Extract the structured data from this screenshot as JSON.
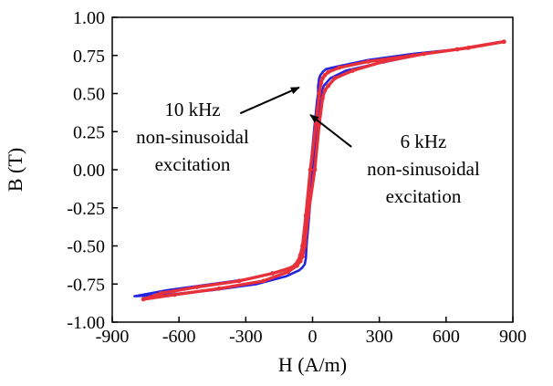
{
  "chart_data": {
    "type": "line",
    "title": "",
    "xlabel": "H (A/m)",
    "ylabel": "B (T)",
    "xlim": [
      -900,
      900
    ],
    "ylim": [
      -1.0,
      1.0
    ],
    "x_ticks": [
      -900,
      -600,
      -300,
      0,
      300,
      600,
      900
    ],
    "x_tick_labels": [
      "-900",
      "-600",
      "-300",
      "0",
      "300",
      "600",
      "900"
    ],
    "y_ticks": [
      -1.0,
      -0.75,
      -0.5,
      -0.25,
      0.0,
      0.25,
      0.5,
      0.75,
      1.0
    ],
    "y_tick_labels": [
      "-1.00",
      "-0.75",
      "-0.50",
      "-0.25",
      "0.00",
      "0.25",
      "0.50",
      "0.75",
      "1.00"
    ],
    "grid": false,
    "legend": "none",
    "series": [
      {
        "color": "#2323e0",
        "x": [
          850,
          650,
          450,
          250,
          120,
          60,
          45,
          35,
          30,
          25,
          25,
          20,
          10,
          -10,
          -30,
          -40,
          -50,
          -55,
          -60,
          -80,
          -150,
          -300,
          -500,
          -650,
          -800,
          -650,
          -450,
          -250,
          -120,
          -60,
          -45,
          -35,
          -30,
          -28,
          -25,
          -22,
          -15,
          0,
          20,
          30,
          40,
          50,
          80,
          150,
          300,
          500,
          700,
          850
        ],
        "y": [
          0.84,
          0.79,
          0.76,
          0.72,
          0.68,
          0.66,
          0.64,
          0.62,
          0.6,
          0.55,
          0.5,
          0.45,
          0.3,
          0.0,
          -0.3,
          -0.5,
          -0.55,
          -0.58,
          -0.6,
          -0.63,
          -0.67,
          -0.72,
          -0.76,
          -0.79,
          -0.83,
          -0.82,
          -0.79,
          -0.75,
          -0.7,
          -0.66,
          -0.64,
          -0.62,
          -0.58,
          -0.52,
          -0.46,
          -0.42,
          -0.3,
          0.0,
          0.3,
          0.42,
          0.5,
          0.55,
          0.6,
          0.65,
          0.7,
          0.76,
          0.8,
          0.84
        ]
      },
      {
        "color": "#e8303a",
        "x": [
          860,
          650,
          450,
          250,
          120,
          70,
          55,
          45,
          38,
          30,
          15,
          -10,
          -30,
          -45,
          -55,
          -65,
          -90,
          -180,
          -330,
          -520,
          -680,
          -760,
          -620,
          -420,
          -220,
          -110,
          -70,
          -55,
          -45,
          -35,
          -20,
          10,
          30,
          45,
          55,
          70,
          100,
          180,
          320,
          500,
          700,
          860
        ],
        "y": [
          0.84,
          0.79,
          0.75,
          0.71,
          0.67,
          0.64,
          0.62,
          0.6,
          0.57,
          0.5,
          0.3,
          0.0,
          -0.3,
          -0.5,
          -0.56,
          -0.6,
          -0.64,
          -0.68,
          -0.73,
          -0.77,
          -0.81,
          -0.85,
          -0.82,
          -0.78,
          -0.73,
          -0.67,
          -0.63,
          -0.6,
          -0.57,
          -0.5,
          -0.3,
          0.0,
          0.3,
          0.47,
          0.52,
          0.55,
          0.6,
          0.65,
          0.71,
          0.76,
          0.8,
          0.84
        ]
      }
    ],
    "annotations": [
      {
        "lines": [
          "10 kHz",
          "non-sinusoidal",
          "excitation"
        ],
        "arrow_from": [
          -325,
          0.37
        ],
        "arrow_to": [
          -60,
          0.54
        ]
      },
      {
        "lines": [
          "6 kHz",
          "non-sinusoidal",
          "excitation"
        ],
        "arrow_from": [
          175,
          0.15
        ],
        "arrow_to": [
          -10,
          0.36
        ]
      }
    ]
  }
}
